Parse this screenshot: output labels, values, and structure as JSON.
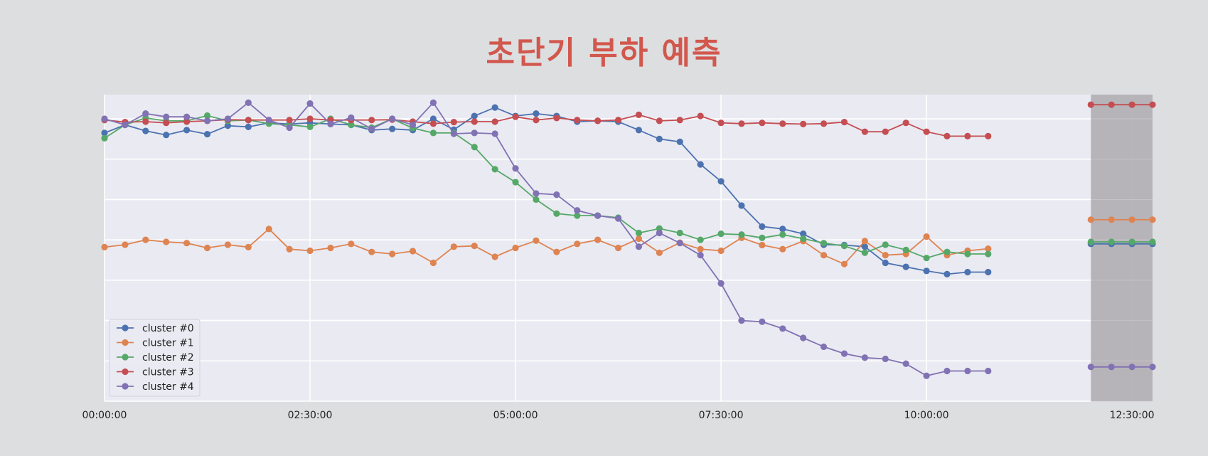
{
  "title": "초단기 부하 예측",
  "colors": {
    "background": "#dddee0",
    "plot_background": "#eaeaf2",
    "grid": "#ffffff",
    "title": "#d2574c",
    "forecast_band": "#b3b1b5"
  },
  "chart_data": {
    "type": "line",
    "title": "초단기 부하 예측",
    "xlabel": "",
    "ylabel": "",
    "x_tick_labels": [
      "00:00:00",
      "02:30:00",
      "05:00:00",
      "07:30:00",
      "10:00:00",
      "12:30:00"
    ],
    "x_tick_minutes": [
      0,
      150,
      300,
      450,
      600,
      750
    ],
    "xlim_minutes": [
      0,
      765
    ],
    "ylim": [
      0,
      7.6
    ],
    "y_gridlines": [
      0,
      1,
      2,
      3,
      4,
      5,
      6,
      7
    ],
    "y_tick_labels_visible": false,
    "grid": true,
    "marker": "circle",
    "legend_location": "lower-left",
    "history_x_minutes": [
      0,
      15,
      30,
      45,
      60,
      75,
      90,
      105,
      120,
      135,
      150,
      165,
      180,
      195,
      210,
      225,
      240,
      255,
      270,
      285,
      300,
      315,
      330,
      345,
      360,
      375,
      390,
      405,
      420,
      435,
      450,
      465,
      480,
      495,
      510,
      525,
      540,
      555,
      570,
      585,
      600,
      615,
      630,
      645
    ],
    "forecast_band_minutes": [
      720,
      765
    ],
    "forecast_x_minutes": [
      720,
      735,
      750,
      765
    ],
    "series": [
      {
        "name": "cluster #0",
        "color": "#4c72b0",
        "history": [
          6.65,
          6.85,
          6.7,
          6.6,
          6.72,
          6.62,
          6.83,
          6.8,
          6.9,
          6.87,
          6.9,
          6.87,
          6.85,
          6.72,
          6.75,
          6.72,
          7.0,
          6.73,
          7.07,
          7.28,
          7.07,
          7.13,
          7.07,
          6.93,
          6.95,
          6.93,
          6.72,
          6.5,
          6.43,
          5.87,
          5.45,
          4.85,
          4.33,
          4.27,
          4.15,
          3.88,
          3.87,
          3.83,
          3.43,
          3.33,
          3.23,
          3.15,
          3.2,
          3.2
        ],
        "forecast": [
          3.9,
          3.9,
          3.9,
          3.9
        ]
      },
      {
        "name": "cluster #1",
        "color": "#dd8452",
        "history": [
          3.82,
          3.88,
          4.0,
          3.95,
          3.92,
          3.8,
          3.88,
          3.82,
          4.27,
          3.77,
          3.73,
          3.8,
          3.9,
          3.7,
          3.65,
          3.72,
          3.43,
          3.83,
          3.85,
          3.58,
          3.8,
          3.98,
          3.7,
          3.9,
          4.0,
          3.8,
          4.03,
          3.68,
          3.93,
          3.77,
          3.73,
          4.05,
          3.87,
          3.77,
          3.97,
          3.62,
          3.4,
          3.97,
          3.62,
          3.65,
          4.08,
          3.62,
          3.73,
          3.78
        ],
        "forecast": [
          4.5,
          4.5,
          4.5,
          4.5
        ]
      },
      {
        "name": "cluster #2",
        "color": "#55a868",
        "history": [
          6.52,
          6.85,
          7.02,
          6.95,
          6.95,
          7.08,
          6.95,
          6.97,
          6.88,
          6.85,
          6.8,
          7.0,
          6.85,
          6.78,
          7.0,
          6.77,
          6.65,
          6.65,
          6.3,
          5.75,
          5.43,
          5.0,
          4.65,
          4.6,
          4.6,
          4.55,
          4.17,
          4.28,
          4.17,
          4.0,
          4.15,
          4.13,
          4.05,
          4.13,
          4.03,
          3.92,
          3.85,
          3.68,
          3.88,
          3.75,
          3.55,
          3.7,
          3.65,
          3.65
        ],
        "forecast": [
          3.95,
          3.95,
          3.95,
          3.95
        ]
      },
      {
        "name": "cluster #3",
        "color": "#c44e52",
        "history": [
          6.97,
          6.92,
          6.93,
          6.9,
          6.93,
          6.95,
          6.98,
          6.97,
          6.97,
          6.97,
          7.0,
          6.97,
          6.97,
          6.97,
          6.98,
          6.93,
          6.88,
          6.92,
          6.93,
          6.93,
          7.05,
          6.97,
          7.02,
          6.97,
          6.95,
          6.97,
          7.1,
          6.95,
          6.97,
          7.07,
          6.9,
          6.88,
          6.9,
          6.88,
          6.87,
          6.88,
          6.92,
          6.68,
          6.68,
          6.9,
          6.68,
          6.57,
          6.57,
          6.57
        ],
        "forecast": [
          7.35,
          7.35,
          7.35,
          7.35
        ]
      },
      {
        "name": "cluster #4",
        "color": "#8172b3",
        "history": [
          7.0,
          6.85,
          7.13,
          7.05,
          7.05,
          6.95,
          7.0,
          7.4,
          6.97,
          6.78,
          7.38,
          6.87,
          7.03,
          6.75,
          7.0,
          6.85,
          7.4,
          6.63,
          6.65,
          6.63,
          5.77,
          5.15,
          5.12,
          4.73,
          4.6,
          4.53,
          3.83,
          4.17,
          3.92,
          3.62,
          2.92,
          2.0,
          1.97,
          1.8,
          1.57,
          1.35,
          1.18,
          1.08,
          1.05,
          0.93,
          0.63,
          0.75,
          0.75,
          0.75
        ],
        "forecast": [
          0.85,
          0.85,
          0.85,
          0.85
        ]
      }
    ]
  }
}
